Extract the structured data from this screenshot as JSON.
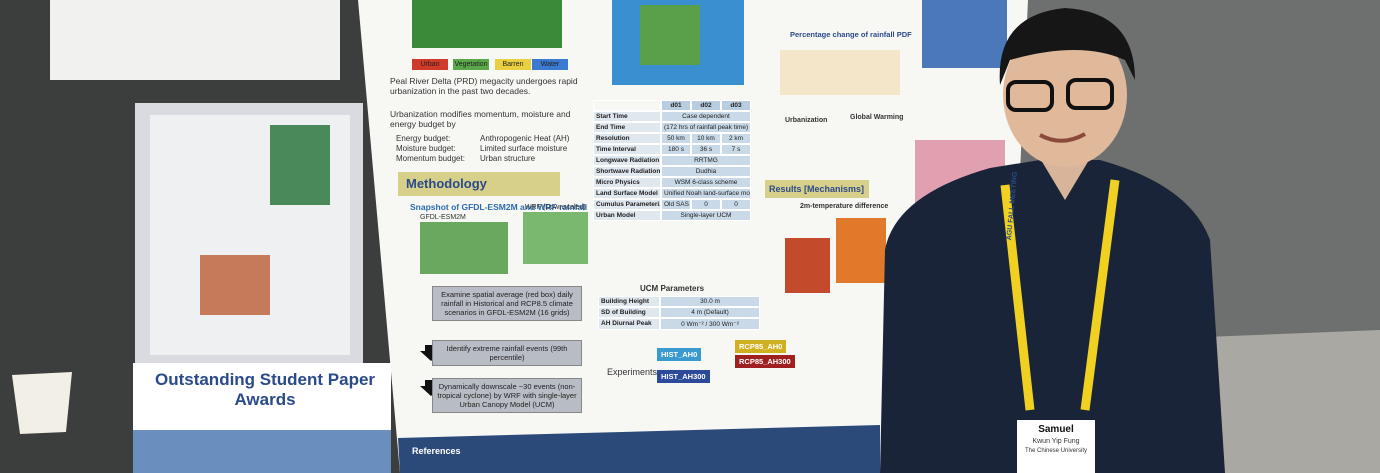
{
  "award_sign": {
    "title": "Outstanding Student Paper Awards"
  },
  "poster": {
    "map_legend": [
      "Urban",
      "Vegetation",
      "Barren",
      "Water"
    ],
    "intro": "Peal River Delta (PRD) megacity undergoes rapid urbanization in the past two decades.",
    "budget_intro": "Urbanization modifies momentum, moisture and energy budget by",
    "budgets": [
      [
        "Energy budget:",
        "Anthropogenic Heat (AH)"
      ],
      [
        "Moisture budget:",
        "Limited surface moisture"
      ],
      [
        "Momentum budget:",
        "Urban structure"
      ]
    ],
    "methodology": "Methodology",
    "snapshot_title": "Snapshot of GFDL-ESM2M and WRF rainfall",
    "snapshot_labels": [
      "GFDL-ESM2M",
      "WRF (Downscaled)"
    ],
    "steps": [
      "Examine spatial average (red box) daily rainfall in Historical and RCP8.5 climate scenarios in GFDL-ESM2M (16 grids)",
      "Identify extreme rainfall events (99th percentile)",
      "Dynamically downscale ~30 events (non-tropical cyclone) by WRF with single-layer Urban Canopy Model (UCM)"
    ],
    "wrf_table": {
      "header": [
        "d01",
        "d02",
        "d03"
      ],
      "rows": [
        [
          "Start Time",
          "Case dependent"
        ],
        [
          "End Time",
          "(172 hrs of rainfall peak time)"
        ],
        [
          "Resolution",
          "50 km",
          "10 km",
          "2 km"
        ],
        [
          "Time Interval",
          "180 s",
          "36 s",
          "7 s"
        ],
        [
          "Longwave Radiation",
          "RRTMG"
        ],
        [
          "Shortwave Radiation",
          "Dudhia"
        ],
        [
          "Micro Physics",
          "WSM 6-class scheme"
        ],
        [
          "Land Surface Model",
          "Unified Noah land-surface model"
        ],
        [
          "Cumulus Parameterization",
          "Old SAS",
          "0",
          "0"
        ],
        [
          "Urban Model",
          "Single-layer UCM"
        ]
      ]
    },
    "ucm": {
      "title": "UCM Parameters",
      "rows": [
        [
          "Building Height",
          "30.0 m"
        ],
        [
          "SD of Building",
          "4 m (Default)"
        ],
        [
          "AH Diurnal Peak",
          "0 Wm⁻² / 300 Wm⁻²"
        ]
      ]
    },
    "experiments_label": "Experiments:",
    "experiments": [
      "HIST_AH0",
      "RCP85_AH0",
      "HIST_AH300",
      "RCP85_AH300"
    ],
    "pdf_title": "Percentage change of rainfall PDF",
    "compare_header": [
      "Urbanization",
      "Global Warming"
    ],
    "results": "Results [Mechanisms]",
    "temp_title": "2m-temperature difference",
    "references": "References"
  },
  "badge": {
    "name": "Samuel",
    "full_name": "Kwun Yip Fung",
    "org": "The Chinese University"
  },
  "lanyard": "AGU FALL MEETING"
}
